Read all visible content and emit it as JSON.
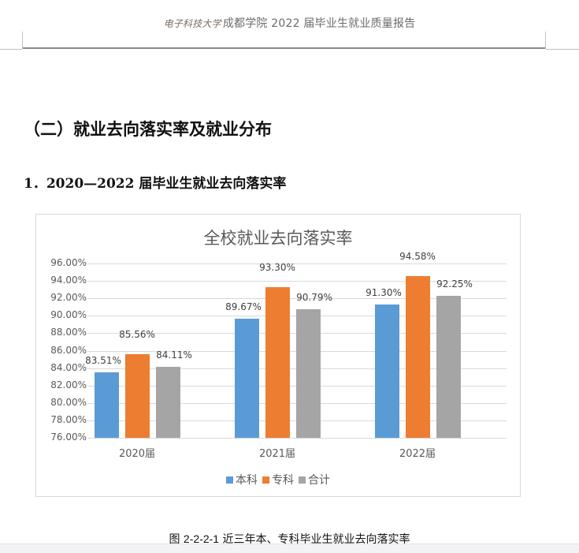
{
  "header": {
    "logo_text": "电子科技大学",
    "title": "成都学院 2022 届毕业生就业质量报告"
  },
  "section_title": "（二）就业去向落实率及就业分布",
  "sub_title": "1．2020—2022 届毕业生就业去向落实率",
  "chart_data": {
    "type": "bar",
    "title": "全校就业去向落实率",
    "categories": [
      "2020届",
      "2021届",
      "2022届"
    ],
    "series": [
      {
        "name": "本科",
        "color": "#5b9bd5",
        "values": [
          83.51,
          89.67,
          91.3
        ],
        "labels": [
          "83.51%",
          "89.67%",
          "91.30%"
        ]
      },
      {
        "name": "专科",
        "color": "#ed7d31",
        "values": [
          85.56,
          93.3,
          94.58
        ],
        "labels": [
          "85.56%",
          "93.30%",
          "94.58%"
        ]
      },
      {
        "name": "合计",
        "color": "#a5a5a5",
        "values": [
          84.11,
          90.79,
          92.25
        ],
        "labels": [
          "84.11%",
          "90.79%",
          "92.25%"
        ]
      }
    ],
    "yticks": [
      "96.00%",
      "94.00%",
      "92.00%",
      "90.00%",
      "88.00%",
      "86.00%",
      "84.00%",
      "82.00%",
      "80.00%",
      "78.00%",
      "76.00%"
    ],
    "ylim": [
      76,
      96
    ],
    "xlabel": "",
    "ylabel": "",
    "grid": true,
    "legend_position": "bottom"
  },
  "caption": {
    "prefix": "图 ",
    "number": "2-2-2-1",
    "text": " 近三年本、专科毕业生就业去向落实率"
  }
}
